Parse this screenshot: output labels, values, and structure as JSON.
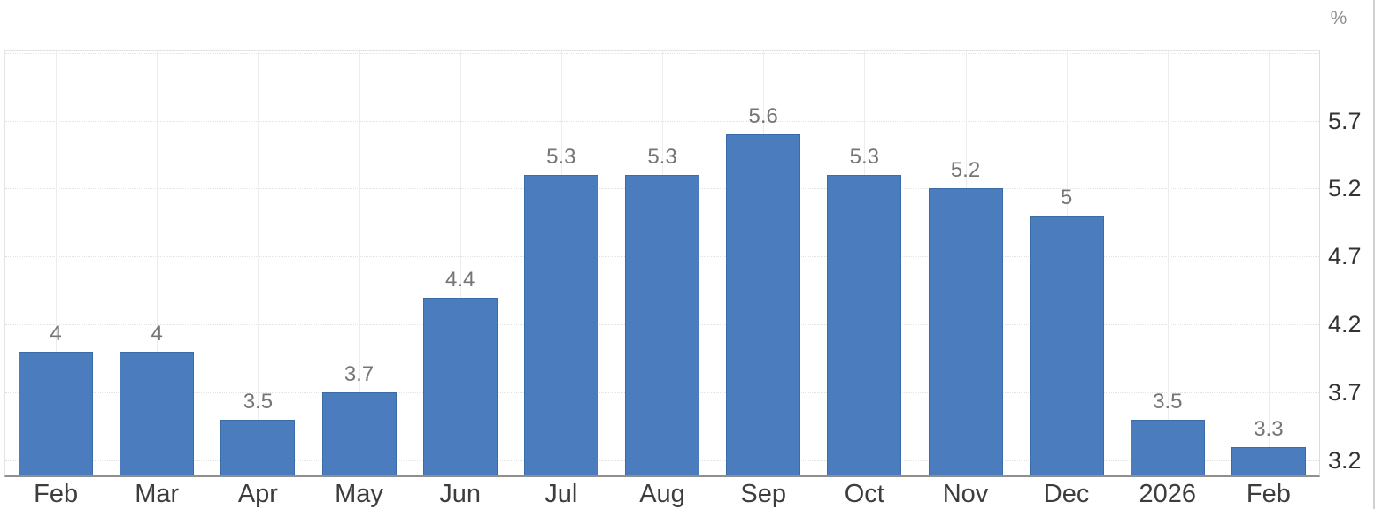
{
  "chart_data": {
    "type": "bar",
    "title": "",
    "unit": "%",
    "categories": [
      "Feb",
      "Mar",
      "Apr",
      "May",
      "Jun",
      "Jul",
      "Aug",
      "Sep",
      "Oct",
      "Nov",
      "Dec",
      "2026",
      "Feb"
    ],
    "values": [
      4,
      4,
      3.5,
      3.7,
      4.4,
      5.3,
      5.3,
      5.6,
      5.3,
      5.2,
      5,
      3.5,
      3.3
    ],
    "bar_labels": [
      "4",
      "4",
      "3.5",
      "3.7",
      "4.4",
      "5.3",
      "5.3",
      "5.6",
      "5.3",
      "5.2",
      "5",
      "3.5",
      "3.3"
    ],
    "ylim": [
      3.09,
      6.21
    ],
    "yticks": [
      3.2,
      3.7,
      4.2,
      4.7,
      5.2,
      5.7
    ],
    "ytick_labels": [
      "3.2",
      "3.7",
      "4.2",
      "4.7",
      "5.2",
      "5.7"
    ],
    "grid_ticks": [
      3.2,
      3.7,
      4.2,
      4.7,
      5.2,
      5.7,
      6.2
    ],
    "grid": true,
    "legend": false,
    "ylabel_position": "right",
    "colors": {
      "bar": "#4a7cbe",
      "bar_border": "#3a6da8",
      "value_label": "#757575",
      "x_label": "#3d3d3d",
      "y_label": "#333333",
      "unit_label": "#8f8f8f",
      "grid_h": "#e2e2e2",
      "grid_v": "#ededed",
      "plot_border": "#e5e5e5",
      "baseline": "#8f8f8f",
      "edge_divider": "#d0d0d0"
    }
  }
}
